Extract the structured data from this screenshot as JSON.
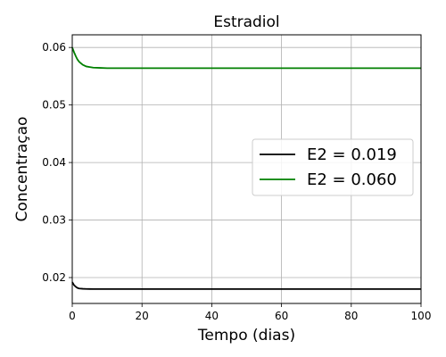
{
  "chart_data": {
    "type": "line",
    "title": "Estradiol",
    "xlabel": "Tempo (dias)",
    "ylabel": "Concentraçao",
    "xlim": [
      0,
      100
    ],
    "ylim": [
      0.0155,
      0.0622
    ],
    "xticks": [
      0,
      20,
      40,
      60,
      80,
      100
    ],
    "yticks": [
      0.02,
      0.03,
      0.04,
      0.05,
      0.06
    ],
    "ytick_labels": [
      "0.02",
      "0.03",
      "0.04",
      "0.05",
      "0.06"
    ],
    "grid": true,
    "legend_position": "center-right",
    "series": [
      {
        "name": "E2 = 0.019",
        "color": "#000000",
        "x": [
          0,
          0.5,
          1,
          1.5,
          2,
          3,
          4,
          5,
          6,
          8,
          10,
          15,
          20,
          40,
          60,
          80,
          100
        ],
        "y": [
          0.0192,
          0.0187,
          0.0184,
          0.0182,
          0.0181,
          0.01805,
          0.01802,
          0.01801,
          0.018,
          0.018,
          0.018,
          0.018,
          0.018,
          0.018,
          0.018,
          0.018,
          0.018
        ]
      },
      {
        "name": "E2 = 0.060",
        "color": "#008000",
        "x": [
          0,
          0.5,
          1,
          1.5,
          2,
          3,
          4,
          5,
          6,
          8,
          10,
          15,
          20,
          40,
          60,
          80,
          100
        ],
        "y": [
          0.06,
          0.0592,
          0.0585,
          0.0579,
          0.0575,
          0.057,
          0.0567,
          0.0566,
          0.0565,
          0.05645,
          0.0564,
          0.0564,
          0.0564,
          0.0564,
          0.0564,
          0.0564,
          0.0564
        ]
      }
    ]
  }
}
